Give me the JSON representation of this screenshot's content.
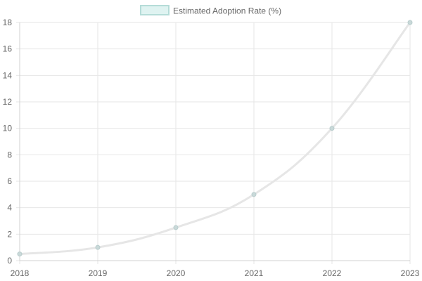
{
  "chart_data": {
    "type": "line",
    "x": [
      "2018",
      "2019",
      "2020",
      "2021",
      "2022",
      "2023"
    ],
    "series": [
      {
        "name": "Estimated Adoption Rate (%)",
        "values": [
          0.5,
          1,
          2.5,
          5,
          10,
          18
        ]
      }
    ],
    "ylim": [
      0,
      18
    ],
    "yticks": [
      0,
      2,
      4,
      6,
      8,
      10,
      12,
      14,
      16,
      18
    ],
    "grid": true,
    "legend": "top-center",
    "colors": {
      "line": "#e6e6e6",
      "point": "#c9d9d9",
      "legend_fill": "#dff3f1",
      "legend_border": "#b5dcd8",
      "grid": "#e6e6e6",
      "text": "#666666"
    }
  }
}
